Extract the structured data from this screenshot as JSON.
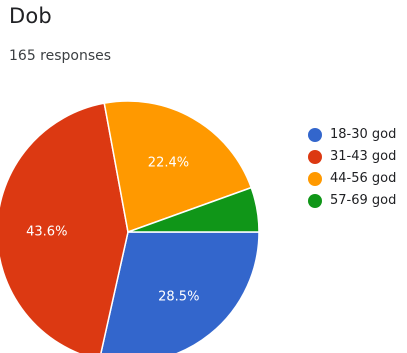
{
  "header": {
    "title": "Dob",
    "responses": "165 responses"
  },
  "chart_data": {
    "type": "pie",
    "categories": [
      "18-30 god",
      "31-43 god",
      "44-56 god",
      "57-69 god"
    ],
    "values": [
      28.5,
      43.6,
      22.4,
      5.5
    ],
    "labels": [
      "28.5%",
      "43.6%",
      "22.4%",
      ""
    ],
    "colors": [
      "#3366cc",
      "#dc3912",
      "#ff9900",
      "#109618"
    ],
    "legend_position": "right"
  }
}
